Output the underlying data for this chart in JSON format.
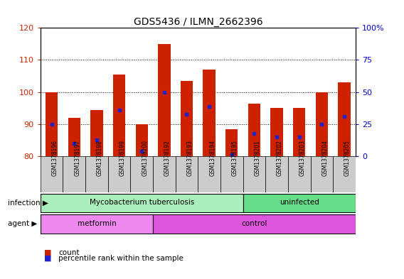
{
  "title": "GDS5436 / ILMN_2662396",
  "samples": [
    "GSM1378196",
    "GSM1378197",
    "GSM1378198",
    "GSM1378199",
    "GSM1378200",
    "GSM1378192",
    "GSM1378193",
    "GSM1378194",
    "GSM1378195",
    "GSM1378201",
    "GSM1378202",
    "GSM1378203",
    "GSM1378204",
    "GSM1378205"
  ],
  "bar_tops": [
    100,
    92,
    94.5,
    105.5,
    90,
    115,
    103.5,
    107,
    88.5,
    96.5,
    95,
    95,
    100,
    103
  ],
  "bar_bottom": 80,
  "blue_dots": [
    90,
    84,
    85,
    94.5,
    81.5,
    100,
    93,
    95.5,
    80.5,
    87,
    86,
    86,
    90,
    92.5
  ],
  "ylim_left": [
    80,
    120
  ],
  "ylim_right": [
    0,
    100
  ],
  "yticks_left": [
    80,
    90,
    100,
    110,
    120
  ],
  "yticks_right": [
    0,
    25,
    50,
    75,
    100
  ],
  "ytick_right_labels": [
    "0",
    "25",
    "50",
    "75",
    "100%"
  ],
  "bar_color": "#cc2200",
  "dot_color": "#2222cc",
  "infection_groups": [
    {
      "label": "Mycobacterium tuberculosis",
      "start": 0,
      "end": 9,
      "color": "#aaeebb"
    },
    {
      "label": "uninfected",
      "start": 9,
      "end": 14,
      "color": "#66dd88"
    }
  ],
  "agent_groups": [
    {
      "label": "metformin",
      "start": 0,
      "end": 5,
      "color": "#ee88ee"
    },
    {
      "label": "control",
      "start": 5,
      "end": 14,
      "color": "#dd55dd"
    }
  ],
  "infection_label": "infection",
  "agent_label": "agent",
  "legend_count": "count",
  "legend_percentile": "percentile rank within the sample",
  "title_fontsize": 10,
  "axis_color_left": "#cc2200",
  "axis_color_right": "#0000cc",
  "bar_width": 0.55,
  "xtick_bg_color": "#cccccc",
  "grid_yticks": [
    90,
    100,
    110
  ]
}
